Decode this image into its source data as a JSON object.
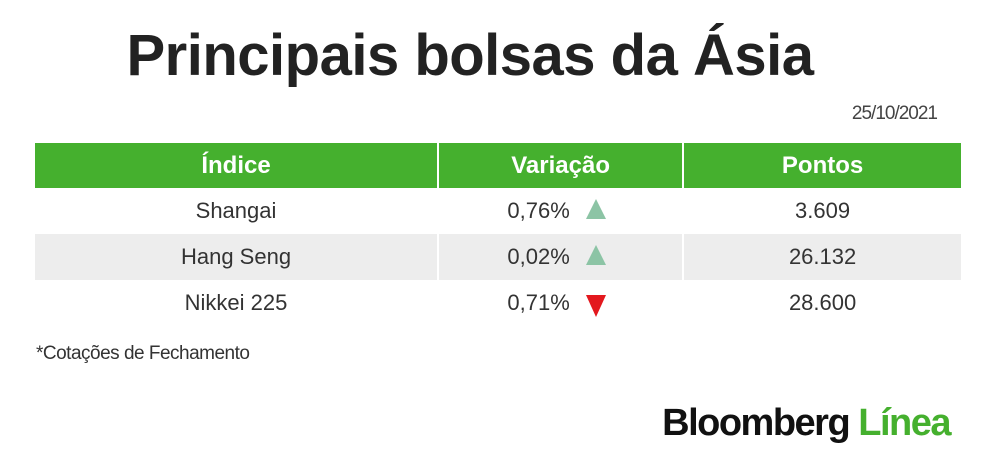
{
  "title": "Principais bolsas da Ásia",
  "date": "25/10/2021",
  "table": {
    "headers": [
      "Índice",
      "Variação",
      "Pontos"
    ],
    "rows": [
      {
        "index": "Shangai",
        "variation": "0,76%",
        "direction": "up",
        "points": "3.609"
      },
      {
        "index": "Hang Seng",
        "variation": "0,02%",
        "direction": "up",
        "points": "26.132"
      },
      {
        "index": "Nikkei 225",
        "variation": "0,71%",
        "direction": "down",
        "points": "28.600"
      }
    ]
  },
  "footnote": "*Cotações de Fechamento",
  "logo": {
    "brand": "Bloomberg",
    "suffix": "Línea"
  },
  "colors": {
    "header_green": "#45b02e",
    "up_arrow": "#8cc4a5",
    "down_arrow": "#e3181e",
    "alt_row": "#ededed"
  }
}
